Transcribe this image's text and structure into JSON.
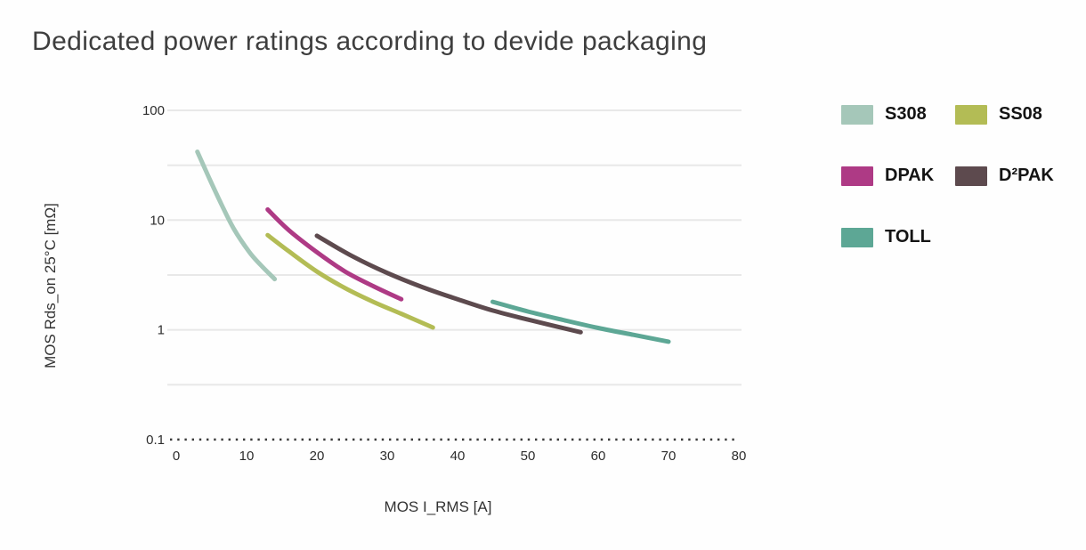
{
  "title": "Dedicated power ratings according to devide packaging",
  "chart_data": {
    "type": "line",
    "title": "Dedicated power ratings according to devide packaging",
    "xlabel": "MOS I_RMS [A]",
    "ylabel": "MOS Rds_on 25°C [mΩ]",
    "xlim": [
      0,
      80
    ],
    "ylim": [
      0.1,
      100
    ],
    "y_scale": "log",
    "grid": "horizontal-only",
    "legend_position": "right",
    "x_ticks": [
      0,
      10,
      20,
      30,
      40,
      50,
      60,
      70,
      80
    ],
    "y_ticks": [
      {
        "label": "100",
        "value": 100
      },
      {
        "label": "10",
        "value": 10
      },
      {
        "label": "1",
        "value": 1
      },
      {
        "label": "0.1",
        "value": 0.1
      }
    ],
    "minor_gridlines": [
      31.6,
      3.16,
      0.316
    ],
    "series": [
      {
        "name": "S308",
        "color": "#a5c7b9",
        "points": [
          [
            3,
            42
          ],
          [
            4.7,
            24
          ],
          [
            6.4,
            14
          ],
          [
            8.2,
            8.3
          ],
          [
            10.4,
            5.1
          ],
          [
            12,
            3.9
          ],
          [
            14,
            2.9
          ]
        ]
      },
      {
        "name": "SS08",
        "color": "#b3bc55",
        "points": [
          [
            13,
            7.3
          ],
          [
            16,
            5.2
          ],
          [
            20,
            3.4
          ],
          [
            24,
            2.4
          ],
          [
            28,
            1.8
          ],
          [
            32,
            1.4
          ],
          [
            36.5,
            1.05
          ]
        ]
      },
      {
        "name": "DPAK",
        "color": "#ae3a85",
        "points": [
          [
            13,
            12.5
          ],
          [
            16,
            8.1
          ],
          [
            20,
            5.1
          ],
          [
            24,
            3.4
          ],
          [
            28,
            2.5
          ],
          [
            32,
            1.9
          ]
        ]
      },
      {
        "name": "D²PAK",
        "color": "#5d4a4e",
        "points": [
          [
            20,
            7.2
          ],
          [
            25,
            4.7
          ],
          [
            30,
            3.3
          ],
          [
            35,
            2.45
          ],
          [
            40,
            1.9
          ],
          [
            45,
            1.5
          ],
          [
            50,
            1.24
          ],
          [
            57.5,
            0.95
          ]
        ]
      },
      {
        "name": "TOLL",
        "color": "#5da795",
        "points": [
          [
            45,
            1.8
          ],
          [
            50,
            1.47
          ],
          [
            55,
            1.23
          ],
          [
            60,
            1.04
          ],
          [
            65,
            0.9
          ],
          [
            70,
            0.78
          ]
        ]
      }
    ]
  },
  "legend": {
    "items": [
      {
        "label": "S308",
        "color": "#a5c7b9"
      },
      {
        "label": "SS08",
        "color": "#b3bc55"
      },
      {
        "label": "DPAK",
        "color": "#ae3a85"
      },
      {
        "label": "D²PAK",
        "color": "#5d4a4e"
      },
      {
        "label": "TOLL",
        "color": "#5da795"
      }
    ]
  },
  "colors": {
    "background": "#fefefe",
    "gridline": "#e8e8e8",
    "baseline_dotted": "#3a3a3a",
    "title_text": "#3e3e3e",
    "tick_text": "#2d2d2d"
  }
}
